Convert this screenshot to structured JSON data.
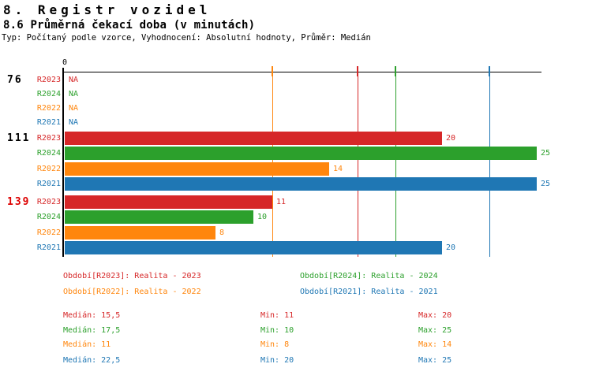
{
  "header": {
    "title": "8. Registr vozidel",
    "subtitle": "8.6 Průměrná čekací doba (v minutách)",
    "meta": "Typ: Počítaný podle vzorce, Vyhodnocení: Absolutní hodnoty, Průměr: Medián"
  },
  "chart_data": {
    "type": "bar",
    "orientation": "horizontal",
    "title": "8.6 Průměrná čekací doba (v minutách)",
    "axis": {
      "zero_label": "0",
      "xlim": [
        0,
        25
      ],
      "gridlines": "median-per-series"
    },
    "series": [
      {
        "id": "R2023",
        "label": "R2023",
        "color": "#d62728",
        "legend_label": "Období[R2023]: Realita - 2023",
        "median": 15.5,
        "min": 11,
        "max": 20,
        "stats": {
          "median_label": "Medián: 15,5",
          "min_label": "Min: 11",
          "max_label": "Max: 20"
        }
      },
      {
        "id": "R2024",
        "label": "R2024",
        "color": "#2ca02c",
        "legend_label": "Období[R2024]: Realita - 2024",
        "median": 17.5,
        "min": 10,
        "max": 25,
        "stats": {
          "median_label": "Medián: 17,5",
          "min_label": "Min: 10",
          "max_label": "Max: 25"
        }
      },
      {
        "id": "R2022",
        "label": "R2022",
        "color": "#ff860d",
        "legend_label": "Období[R2022]: Realita - 2022",
        "median": 11,
        "min": 8,
        "max": 14,
        "stats": {
          "median_label": "Medián: 11",
          "min_label": "Min: 8",
          "max_label": "Max: 14"
        }
      },
      {
        "id": "R2021",
        "label": "R2021",
        "color": "#1f77b4",
        "legend_label": "Období[R2021]: Realita - 2021",
        "median": 22.5,
        "min": 20,
        "max": 25,
        "stats": {
          "median_label": "Medián: 22,5",
          "min_label": "Min: 20",
          "max_label": "Max: 25"
        }
      }
    ],
    "groups": [
      {
        "label": "76",
        "label_color": "#000000",
        "values": [
          null,
          null,
          null,
          null
        ],
        "value_labels": [
          "NA",
          "NA",
          "NA",
          "NA"
        ]
      },
      {
        "label": "111",
        "label_color": "#000000",
        "values": [
          20,
          25,
          14,
          25
        ],
        "value_labels": [
          "20",
          "25",
          "14",
          "25"
        ]
      },
      {
        "label": "139",
        "label_color": "#dd0000",
        "values": [
          11,
          10,
          8,
          20
        ],
        "value_labels": [
          "11",
          "10",
          "8",
          "20"
        ]
      }
    ]
  }
}
